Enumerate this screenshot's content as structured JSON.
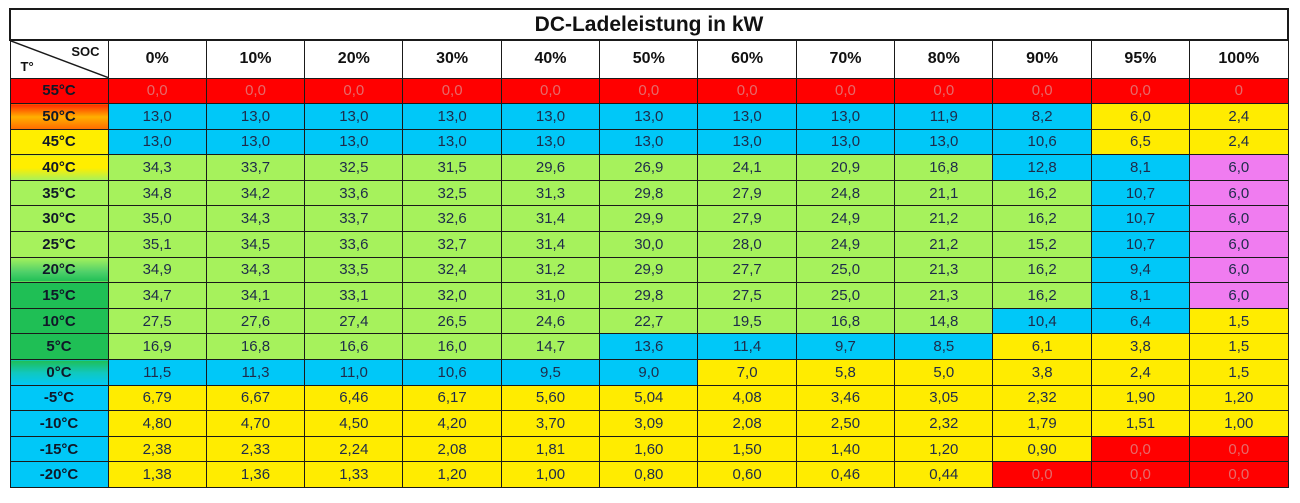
{
  "title": "DC-Ladeleistung in kW",
  "corner": {
    "top_label": "SOC",
    "bottom_label": "T°"
  },
  "columns": [
    "0%",
    "10%",
    "20%",
    "30%",
    "40%",
    "50%",
    "60%",
    "70%",
    "80%",
    "90%",
    "95%",
    "100%"
  ],
  "colors": {
    "red": "#ff0000",
    "blue": "#00c8f8",
    "green": "#a6f25c",
    "yellow": "#ffec00",
    "magenta": "#f07cf0",
    "temp_green": "#1fbf55",
    "temp_orange": "#ff7a1a"
  },
  "rows": [
    {
      "temp": "55°C",
      "temp_bg": "linear-gradient(#ff0000,#ff0000)",
      "values": [
        "0,0",
        "0,0",
        "0,0",
        "0,0",
        "0,0",
        "0,0",
        "0,0",
        "0,0",
        "0,0",
        "0,0",
        "0,0",
        "0"
      ],
      "fills": [
        "red",
        "red",
        "red",
        "red",
        "red",
        "red",
        "red",
        "red",
        "red",
        "red",
        "red",
        "red"
      ]
    },
    {
      "temp": "50°C",
      "temp_bg": "linear-gradient(#ff2a00,#ffb000,#ff6a00)",
      "values": [
        "13,0",
        "13,0",
        "13,0",
        "13,0",
        "13,0",
        "13,0",
        "13,0",
        "13,0",
        "11,9",
        "8,2",
        "6,0",
        "2,4"
      ],
      "fills": [
        "blue",
        "blue",
        "blue",
        "blue",
        "blue",
        "blue",
        "blue",
        "blue",
        "blue",
        "blue",
        "yellow",
        "yellow"
      ]
    },
    {
      "temp": "45°C",
      "temp_bg": "linear-gradient(#ffee00,#ffee00)",
      "values": [
        "13,0",
        "13,0",
        "13,0",
        "13,0",
        "13,0",
        "13,0",
        "13,0",
        "13,0",
        "13,0",
        "10,6",
        "6,5",
        "2,4"
      ],
      "fills": [
        "blue",
        "blue",
        "blue",
        "blue",
        "blue",
        "blue",
        "blue",
        "blue",
        "blue",
        "blue",
        "yellow",
        "yellow"
      ]
    },
    {
      "temp": "40°C",
      "temp_bg": "linear-gradient(#ffee00,#ffee00 50%,#a6f25c)",
      "values": [
        "34,3",
        "33,7",
        "32,5",
        "31,5",
        "29,6",
        "26,9",
        "24,1",
        "20,9",
        "16,8",
        "12,8",
        "8,1",
        "6,0"
      ],
      "fills": [
        "green",
        "green",
        "green",
        "green",
        "green",
        "green",
        "green",
        "green",
        "green",
        "blue",
        "blue",
        "magenta"
      ]
    },
    {
      "temp": "35°C",
      "temp_bg": "linear-gradient(#a6f25c,#a6f25c)",
      "values": [
        "34,8",
        "34,2",
        "33,6",
        "32,5",
        "31,3",
        "29,8",
        "27,9",
        "24,8",
        "21,1",
        "16,2",
        "10,7",
        "6,0"
      ],
      "fills": [
        "green",
        "green",
        "green",
        "green",
        "green",
        "green",
        "green",
        "green",
        "green",
        "green",
        "blue",
        "magenta"
      ]
    },
    {
      "temp": "30°C",
      "temp_bg": "linear-gradient(#a6f25c,#a6f25c)",
      "values": [
        "35,0",
        "34,3",
        "33,7",
        "32,6",
        "31,4",
        "29,9",
        "27,9",
        "24,9",
        "21,2",
        "16,2",
        "10,7",
        "6,0"
      ],
      "fills": [
        "green",
        "green",
        "green",
        "green",
        "green",
        "green",
        "green",
        "green",
        "green",
        "green",
        "blue",
        "magenta"
      ]
    },
    {
      "temp": "25°C",
      "temp_bg": "linear-gradient(#a6f25c,#a6f25c)",
      "values": [
        "35,1",
        "34,5",
        "33,6",
        "32,7",
        "31,4",
        "30,0",
        "28,0",
        "24,9",
        "21,2",
        "15,2",
        "10,7",
        "6,0"
      ],
      "fills": [
        "green",
        "green",
        "green",
        "green",
        "green",
        "green",
        "green",
        "green",
        "green",
        "green",
        "blue",
        "magenta"
      ]
    },
    {
      "temp": "20°C",
      "temp_bg": "linear-gradient(#a6f25c,#4fd06a 60%,#1fbf55)",
      "values": [
        "34,9",
        "34,3",
        "33,5",
        "32,4",
        "31,2",
        "29,9",
        "27,7",
        "25,0",
        "21,3",
        "16,2",
        "9,4",
        "6,0"
      ],
      "fills": [
        "green",
        "green",
        "green",
        "green",
        "green",
        "green",
        "green",
        "green",
        "green",
        "green",
        "blue",
        "magenta"
      ]
    },
    {
      "temp": "15°C",
      "temp_bg": "linear-gradient(#1fbf55,#1fbf55)",
      "values": [
        "34,7",
        "34,1",
        "33,1",
        "32,0",
        "31,0",
        "29,8",
        "27,5",
        "25,0",
        "21,3",
        "16,2",
        "8,1",
        "6,0"
      ],
      "fills": [
        "green",
        "green",
        "green",
        "green",
        "green",
        "green",
        "green",
        "green",
        "green",
        "green",
        "blue",
        "magenta"
      ]
    },
    {
      "temp": "10°C",
      "temp_bg": "linear-gradient(#1fbf55,#1fbf55)",
      "values": [
        "27,5",
        "27,6",
        "27,4",
        "26,5",
        "24,6",
        "22,7",
        "19,5",
        "16,8",
        "14,8",
        "10,4",
        "6,4",
        "1,5"
      ],
      "fills": [
        "green",
        "green",
        "green",
        "green",
        "green",
        "green",
        "green",
        "green",
        "green",
        "blue",
        "blue",
        "yellow"
      ]
    },
    {
      "temp": "5°C",
      "temp_bg": "linear-gradient(#1fbf55,#1fbf55)",
      "values": [
        "16,9",
        "16,8",
        "16,6",
        "16,0",
        "14,7",
        "13,6",
        "11,4",
        "9,7",
        "8,5",
        "6,1",
        "3,8",
        "1,5"
      ],
      "fills": [
        "green",
        "green",
        "green",
        "green",
        "green",
        "blue",
        "blue",
        "blue",
        "blue",
        "yellow",
        "yellow",
        "yellow"
      ]
    },
    {
      "temp": "0°C",
      "temp_bg": "linear-gradient(#1fbf55,#10c8c0 50%,#00c8f8)",
      "values": [
        "11,5",
        "11,3",
        "11,0",
        "10,6",
        "9,5",
        "9,0",
        "7,0",
        "5,8",
        "5,0",
        "3,8",
        "2,4",
        "1,5"
      ],
      "fills": [
        "blue",
        "blue",
        "blue",
        "blue",
        "blue",
        "blue",
        "yellow",
        "yellow",
        "yellow",
        "yellow",
        "yellow",
        "yellow"
      ]
    },
    {
      "temp": "-5°C",
      "temp_bg": "linear-gradient(#00c8f8,#00c8f8)",
      "values": [
        "6,79",
        "6,67",
        "6,46",
        "6,17",
        "5,60",
        "5,04",
        "4,08",
        "3,46",
        "3,05",
        "2,32",
        "1,90",
        "1,20"
      ],
      "fills": [
        "yellow",
        "yellow",
        "yellow",
        "yellow",
        "yellow",
        "yellow",
        "yellow",
        "yellow",
        "yellow",
        "yellow",
        "yellow",
        "yellow"
      ]
    },
    {
      "temp": "-10°C",
      "temp_bg": "linear-gradient(#00c8f8,#00c8f8)",
      "values": [
        "4,80",
        "4,70",
        "4,50",
        "4,20",
        "3,70",
        "3,09",
        "2,08",
        "2,50",
        "2,32",
        "1,79",
        "1,51",
        "1,00"
      ],
      "fills": [
        "yellow",
        "yellow",
        "yellow",
        "yellow",
        "yellow",
        "yellow",
        "yellow",
        "yellow",
        "yellow",
        "yellow",
        "yellow",
        "yellow"
      ]
    },
    {
      "temp": "-15°C",
      "temp_bg": "linear-gradient(#00c8f8,#00c8f8)",
      "values": [
        "2,38",
        "2,33",
        "2,24",
        "2,08",
        "1,81",
        "1,60",
        "1,50",
        "1,40",
        "1,20",
        "0,90",
        "0,0",
        "0,0"
      ],
      "fills": [
        "yellow",
        "yellow",
        "yellow",
        "yellow",
        "yellow",
        "yellow",
        "yellow",
        "yellow",
        "yellow",
        "yellow",
        "red",
        "red"
      ]
    },
    {
      "temp": "-20°C",
      "temp_bg": "linear-gradient(#00c8f8,#00c8f8)",
      "values": [
        "1,38",
        "1,36",
        "1,33",
        "1,20",
        "1,00",
        "0,80",
        "0,60",
        "0,46",
        "0,44",
        "0,0",
        "0,0",
        "0,0"
      ],
      "fills": [
        "yellow",
        "yellow",
        "yellow",
        "yellow",
        "yellow",
        "yellow",
        "yellow",
        "yellow",
        "yellow",
        "red",
        "red",
        "red"
      ]
    }
  ]
}
